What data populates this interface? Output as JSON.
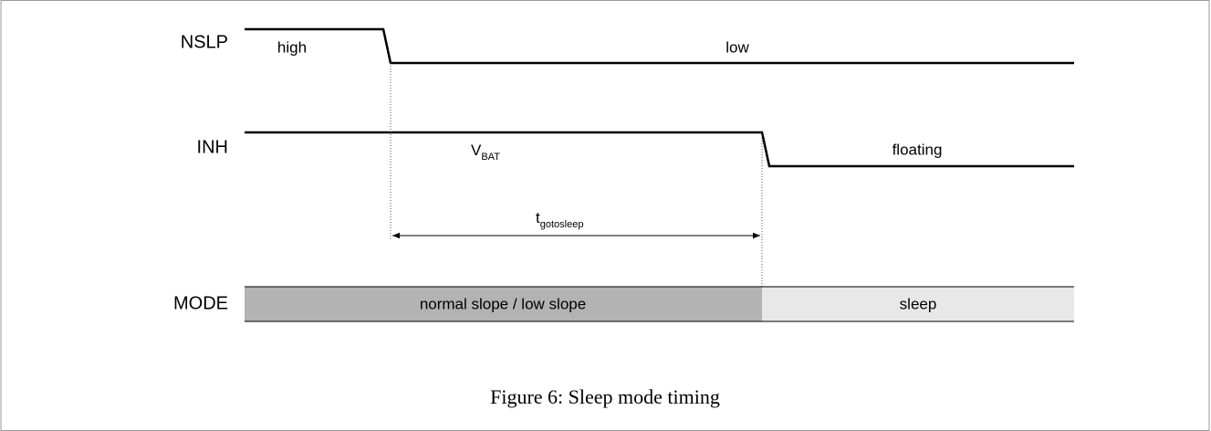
{
  "signals": [
    {
      "name": "NSLP",
      "states": [
        "high",
        "low"
      ]
    },
    {
      "name": "INH",
      "states": [
        {
          "main": "V",
          "sub": "BAT"
        },
        "floating"
      ]
    },
    {
      "name": "MODE",
      "states": [
        "normal slope / low slope",
        "sleep"
      ]
    }
  ],
  "interval": {
    "main": "t",
    "sub": "gotosleep"
  },
  "caption": "Figure 6: Sleep mode timing"
}
